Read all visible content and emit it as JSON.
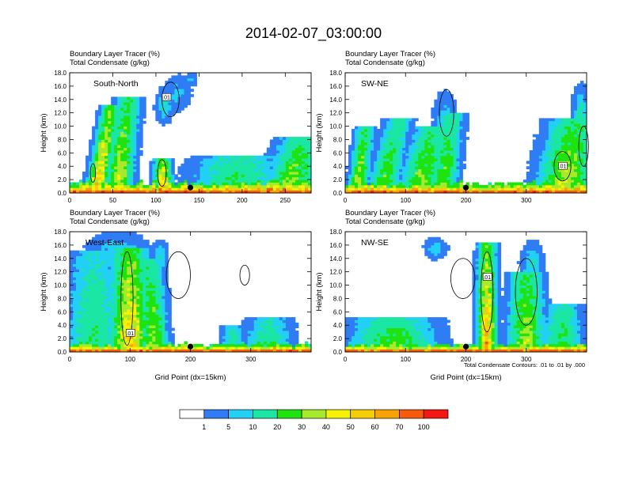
{
  "figure": {
    "title": "2014-02-07_03:00:00",
    "footnote": "Total Condensate Contours: .01 to .01 by .000",
    "colorbar": {
      "colors": [
        "#ffffff",
        "#2f7cf4",
        "#22d0f5",
        "#1be6a4",
        "#1ee30f",
        "#a6ea2b",
        "#f6f205",
        "#f7cd08",
        "#f7a308",
        "#f75a0a",
        "#f31814"
      ],
      "labels": [
        "1",
        "5",
        "10",
        "20",
        "30",
        "40",
        "50",
        "60",
        "70",
        "100"
      ]
    }
  },
  "chart_data": [
    {
      "type": "heatmap",
      "name": "South-North",
      "title_lines": [
        "Boundary Layer Tracer    (%)",
        "Total Condensate    (g/kg)"
      ],
      "label": "South-North",
      "ylabel": "Height (km)",
      "xlabel": "",
      "xlim": [
        0,
        280
      ],
      "ylim": [
        0,
        18
      ],
      "xticks": [
        0,
        50,
        100,
        150,
        200,
        250
      ],
      "yticks": [
        "0.0",
        "2.0",
        "4.0",
        "6.0",
        "8.0",
        "10.0",
        "12.0",
        "14.0",
        "16.0",
        "18.0"
      ],
      "contour_label": ".01",
      "contour_label_pos": [
        112,
        14.3
      ],
      "marker_x": 140,
      "plumes": [
        {
          "x": 30,
          "half_width": 9,
          "top": 13,
          "peak": 55,
          "lean": 0.15
        },
        {
          "x": 55,
          "half_width": 12,
          "top": 14.5,
          "peak": 40,
          "lean": 0.1
        },
        {
          "x": 108,
          "half_width": 8,
          "top": 5,
          "peak": 60,
          "lean": 0
        },
        {
          "x": 190,
          "half_width": 40,
          "top": 5.5,
          "peak": 25,
          "lean": 0.15
        },
        {
          "x": 255,
          "half_width": 22,
          "top": 8.5,
          "peak": 35,
          "lean": 0.2
        }
      ],
      "cloud_blobs": [
        {
          "x": 125,
          "y": 15,
          "rx": 12,
          "ry": 2,
          "v": 7
        },
        {
          "x": 110,
          "y": 13,
          "rx": 8,
          "ry": 2,
          "v": 10
        },
        {
          "x": 140,
          "y": 17,
          "rx": 6,
          "ry": 0.8,
          "v": 6
        }
      ],
      "contours": [
        {
          "x": 117,
          "y": 14,
          "rx": 10,
          "ry": 2.6
        },
        {
          "x": 107,
          "y": 3,
          "rx": 5,
          "ry": 2
        },
        {
          "x": 27,
          "y": 3,
          "rx": 3,
          "ry": 1.4
        }
      ],
      "bl_height": 1.6
    },
    {
      "type": "heatmap",
      "name": "SW-NE",
      "title_lines": [
        "Boundary Layer Tracer    (%)",
        "Total Condensate    (g/kg)"
      ],
      "label": "SW-NE",
      "ylabel": "Height (km)",
      "xlabel": "",
      "xlim": [
        0,
        400
      ],
      "ylim": [
        0,
        18
      ],
      "xticks": [
        0,
        100,
        200,
        300
      ],
      "yticks": [
        "0.0",
        "2.0",
        "4.0",
        "6.0",
        "8.0",
        "10.0",
        "12.0",
        "14.0",
        "16.0",
        "18.0"
      ],
      "contour_label": ".01",
      "contour_label_pos": [
        360,
        4
      ],
      "marker_x": 200,
      "plumes": [
        {
          "x": 20,
          "half_width": 12,
          "top": 10,
          "peak": 40,
          "lean": 0.1
        },
        {
          "x": 60,
          "half_width": 18,
          "top": 11,
          "peak": 30,
          "lean": 0.2
        },
        {
          "x": 120,
          "half_width": 25,
          "top": 10,
          "peak": 35,
          "lean": 0.2
        },
        {
          "x": 160,
          "half_width": 18,
          "top": 12,
          "peak": 30,
          "lean": 0.1
        },
        {
          "x": 360,
          "half_width": 35,
          "top": 11,
          "peak": 40,
          "lean": 0.15
        }
      ],
      "cloud_blobs": [
        {
          "x": 165,
          "y": 11,
          "rx": 15,
          "ry": 3,
          "v": 8
        },
        {
          "x": 390,
          "y": 12,
          "rx": 10,
          "ry": 3,
          "v": 12
        }
      ],
      "contours": [
        {
          "x": 168,
          "y": 12,
          "rx": 12,
          "ry": 3.5
        },
        {
          "x": 360,
          "y": 4,
          "rx": 14,
          "ry": 2.2
        },
        {
          "x": 395,
          "y": 7,
          "rx": 8,
          "ry": 3
        }
      ],
      "bl_height": 1.5
    },
    {
      "type": "heatmap",
      "name": "West-East",
      "title_lines": [
        "Boundary Layer Tracer    (%)",
        "Total Condensate    (g/kg)"
      ],
      "label": "West-East",
      "ylabel": "Height (km)",
      "xlabel": "Grid Point (dx=15km)",
      "xlim": [
        0,
        400
      ],
      "ylim": [
        0,
        18
      ],
      "xticks": [
        0,
        100,
        200,
        300
      ],
      "yticks": [
        "0.0",
        "2.0",
        "4.0",
        "6.0",
        "8.0",
        "10.0",
        "12.0",
        "14.0",
        "16.0",
        "18.0"
      ],
      "contour_label": ".01",
      "contour_label_pos": [
        100,
        2.8
      ],
      "marker_x": 200,
      "plumes": [
        {
          "x": 100,
          "half_width": 25,
          "top": 15.5,
          "peak": 55,
          "lean": 0
        },
        {
          "x": 140,
          "half_width": 18,
          "top": 14,
          "peak": 35,
          "lean": -0.05
        },
        {
          "x": 40,
          "half_width": 35,
          "top": 15,
          "peak": 20,
          "lean": 0
        },
        {
          "x": 330,
          "half_width": 30,
          "top": 5,
          "peak": 20,
          "lean": 0
        },
        {
          "x": 270,
          "half_width": 15,
          "top": 4,
          "peak": 18,
          "lean": 0
        }
      ],
      "cloud_blobs": [
        {
          "x": 80,
          "y": 15,
          "rx": 40,
          "ry": 2.2,
          "v": 8
        },
        {
          "x": 150,
          "y": 14,
          "rx": 10,
          "ry": 2,
          "v": 10
        }
      ],
      "contours": [
        {
          "x": 180,
          "y": 11.5,
          "rx": 20,
          "ry": 3.5
        },
        {
          "x": 290,
          "y": 11.5,
          "rx": 8,
          "ry": 1.5
        },
        {
          "x": 95,
          "y": 8,
          "rx": 10,
          "ry": 7
        }
      ],
      "bl_height": 1.2
    },
    {
      "type": "heatmap",
      "name": "NW-SE",
      "title_lines": [
        "Boundary Layer Tracer    (%)",
        "Total Condensate    (g/kg)"
      ],
      "label": "NW-SE",
      "ylabel": "Height (km)",
      "xlabel": "Grid Point (dx=15km)",
      "xlim": [
        0,
        400
      ],
      "ylim": [
        0,
        18
      ],
      "xticks": [
        0,
        100,
        200,
        300
      ],
      "yticks": [
        "0.0",
        "2.0",
        "4.0",
        "6.0",
        "8.0",
        "10.0",
        "12.0",
        "14.0",
        "16.0",
        "18.0"
      ],
      "contour_label": ".01",
      "contour_label_pos": [
        235,
        11.2
      ],
      "marker_x": 200,
      "plumes": [
        {
          "x": 235,
          "half_width": 12,
          "top": 16.5,
          "peak": 60,
          "lean": 0
        },
        {
          "x": 300,
          "half_width": 22,
          "top": 12,
          "peak": 40,
          "lean": 0
        },
        {
          "x": 80,
          "half_width": 55,
          "top": 5,
          "peak": 30,
          "lean": 0
        },
        {
          "x": 360,
          "half_width": 25,
          "top": 7,
          "peak": 25,
          "lean": 0
        }
      ],
      "cloud_blobs": [
        {
          "x": 150,
          "y": 15.5,
          "rx": 15,
          "ry": 1.2,
          "v": 8
        },
        {
          "x": 310,
          "y": 13,
          "rx": 15,
          "ry": 2.5,
          "v": 10
        }
      ],
      "contours": [
        {
          "x": 195,
          "y": 11,
          "rx": 20,
          "ry": 3
        },
        {
          "x": 300,
          "y": 9,
          "rx": 18,
          "ry": 5
        },
        {
          "x": 235,
          "y": 9,
          "rx": 10,
          "ry": 6
        }
      ],
      "bl_height": 1.1
    }
  ]
}
